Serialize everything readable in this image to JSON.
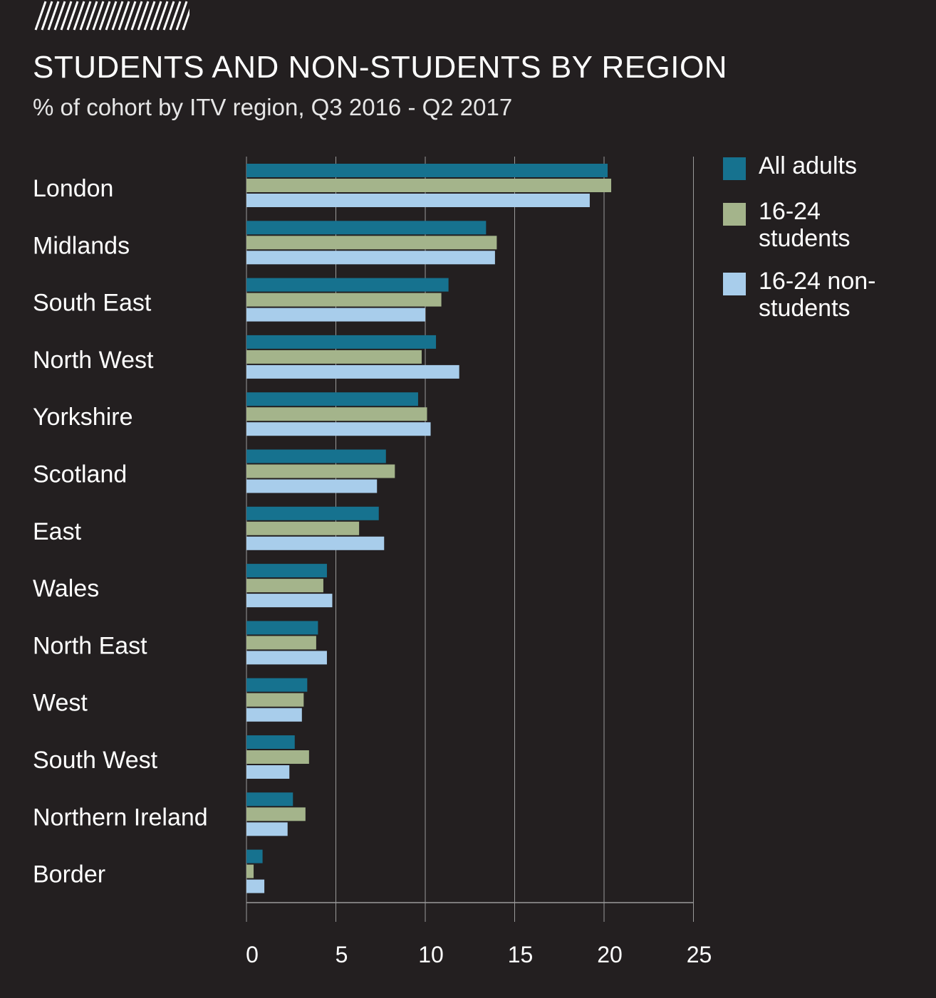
{
  "header": {
    "title": "STUDENTS AND NON-STUDENTS BY REGION",
    "subtitle": "% of cohort by ITV region, Q3 2016 - Q2 2017"
  },
  "colors": {
    "background": "#231f20",
    "all_adults": "#16728f",
    "students": "#a4b48b",
    "non_students": "#a8cdeb",
    "grid": "#9a9a9a"
  },
  "legend": {
    "items": [
      {
        "label": "All adults",
        "color": "#16728f"
      },
      {
        "label": "16-24 students",
        "color": "#a4b48b"
      },
      {
        "label": "16-24 non-students",
        "color": "#a8cdeb"
      }
    ]
  },
  "chart_data": {
    "type": "bar",
    "orientation": "horizontal",
    "title": "STUDENTS AND NON-STUDENTS BY REGION",
    "subtitle": "% of cohort by ITV region, Q3 2016 - Q2 2017",
    "categories": [
      "London",
      "Midlands",
      "South East",
      "North West",
      "Yorkshire",
      "Scotland",
      "East",
      "Wales",
      "North East",
      "West",
      "South West",
      "Northern Ireland",
      "Border"
    ],
    "series": [
      {
        "name": "All adults",
        "values": [
          20.2,
          13.4,
          11.3,
          10.6,
          9.6,
          7.8,
          7.4,
          4.5,
          4.0,
          3.4,
          2.7,
          2.6,
          0.9
        ]
      },
      {
        "name": "16-24 students",
        "values": [
          20.4,
          14.0,
          10.9,
          9.8,
          10.1,
          8.3,
          6.3,
          4.3,
          3.9,
          3.2,
          3.5,
          3.3,
          0.4
        ]
      },
      {
        "name": "16-24 non-students",
        "values": [
          19.2,
          13.9,
          10.0,
          11.9,
          10.3,
          7.3,
          7.7,
          4.8,
          4.5,
          3.1,
          2.4,
          2.3,
          1.0
        ]
      }
    ],
    "xlim": [
      0,
      25
    ],
    "xticks": [
      "0",
      "5",
      "10",
      "15",
      "20",
      "25"
    ],
    "xlabel": "",
    "ylabel": "",
    "grid": true,
    "legend_position": "top-right"
  }
}
